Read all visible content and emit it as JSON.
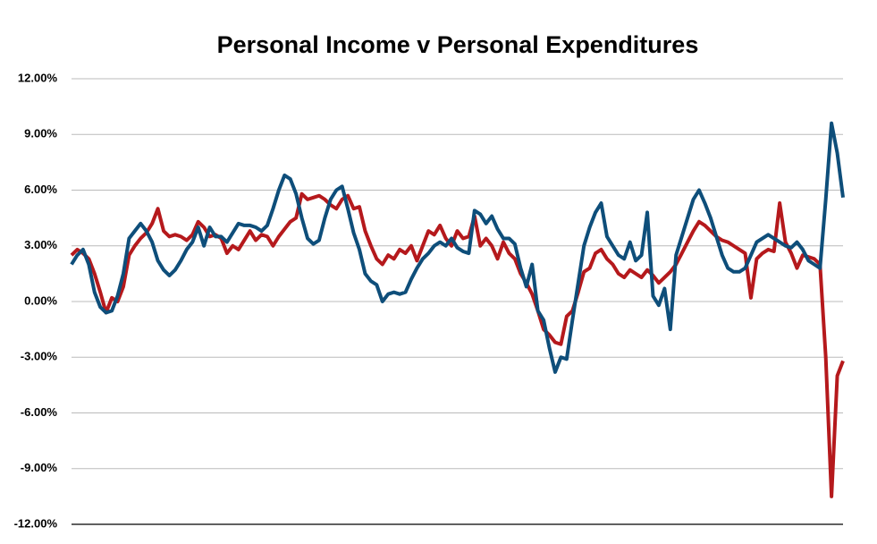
{
  "chart_data": {
    "type": "line",
    "title": "Personal Income v Personal Expenditures",
    "ylim": [
      -12,
      12
    ],
    "yticks": [
      {
        "value": 12,
        "label": "12.00%"
      },
      {
        "value": 9,
        "label": "9.00%"
      },
      {
        "value": 6,
        "label": "6.00%"
      },
      {
        "value": 3,
        "label": "3.00%"
      },
      {
        "value": 0,
        "label": "0.00%"
      },
      {
        "value": -3,
        "label": "-3.00%"
      },
      {
        "value": -6,
        "label": "-6.00%"
      },
      {
        "value": -9,
        "label": "-9.00%"
      },
      {
        "value": -12,
        "label": "-12.00%"
      }
    ],
    "grid": true,
    "series": [
      {
        "color": "#b5191c",
        "values": [
          2.5,
          2.8,
          2.6,
          2.3,
          1.5,
          0.5,
          -0.6,
          0.2,
          0.0,
          0.8,
          2.5,
          3.0,
          3.4,
          3.7,
          4.2,
          5.0,
          3.8,
          3.5,
          3.6,
          3.5,
          3.3,
          3.6,
          4.3,
          4.0,
          3.5,
          3.6,
          3.4,
          2.6,
          3.0,
          2.8,
          3.3,
          3.8,
          3.3,
          3.6,
          3.5,
          3.0,
          3.5,
          3.9,
          4.3,
          4.5,
          5.8,
          5.5,
          5.6,
          5.7,
          5.5,
          5.2,
          5.0,
          5.5,
          5.7,
          5.0,
          5.1,
          3.8,
          3.0,
          2.3,
          2.0,
          2.5,
          2.3,
          2.8,
          2.6,
          3.0,
          2.2,
          3.0,
          3.8,
          3.6,
          4.1,
          3.4,
          3.0,
          3.8,
          3.4,
          3.5,
          4.6,
          3.0,
          3.4,
          3.0,
          2.3,
          3.2,
          2.6,
          2.3,
          1.5,
          1.0,
          0.4,
          -0.5,
          -1.5,
          -1.8,
          -2.2,
          -2.3,
          -0.8,
          -0.5,
          0.5,
          1.6,
          1.8,
          2.6,
          2.8,
          2.3,
          2.0,
          1.5,
          1.3,
          1.7,
          1.5,
          1.3,
          1.7,
          1.4,
          1.0,
          1.3,
          1.6,
          2.0,
          2.6,
          3.2,
          3.8,
          4.3,
          4.1,
          3.8,
          3.5,
          3.3,
          3.2,
          3.0,
          2.8,
          2.6,
          0.2,
          2.3,
          2.6,
          2.8,
          2.7,
          5.3,
          3.2,
          2.6,
          1.8,
          2.5,
          2.4,
          2.3,
          2.0,
          -3.0,
          -10.5,
          -4.0,
          -3.2
        ]
      },
      {
        "color": "#0e4e7a",
        "values": [
          2.0,
          2.5,
          2.8,
          2.0,
          0.5,
          -0.3,
          -0.6,
          -0.5,
          0.3,
          1.5,
          3.4,
          3.8,
          4.2,
          3.8,
          3.2,
          2.2,
          1.7,
          1.4,
          1.7,
          2.2,
          2.8,
          3.2,
          4.0,
          3.0,
          4.0,
          3.5,
          3.5,
          3.2,
          3.7,
          4.2,
          4.1,
          4.1,
          4.0,
          3.8,
          4.1,
          5.0,
          6.0,
          6.8,
          6.6,
          5.8,
          4.5,
          3.4,
          3.1,
          3.3,
          4.5,
          5.5,
          6.0,
          6.2,
          5.0,
          3.7,
          2.8,
          1.5,
          1.1,
          0.9,
          0.0,
          0.4,
          0.5,
          0.4,
          0.5,
          1.2,
          1.8,
          2.3,
          2.6,
          3.0,
          3.2,
          3.0,
          3.4,
          2.9,
          2.7,
          2.6,
          4.9,
          4.7,
          4.2,
          4.6,
          3.9,
          3.4,
          3.4,
          3.1,
          1.8,
          0.8,
          2.0,
          -0.5,
          -1.0,
          -2.5,
          -3.8,
          -3.0,
          -3.1,
          -1.0,
          1.0,
          3.0,
          4.0,
          4.8,
          5.3,
          3.5,
          3.0,
          2.5,
          2.3,
          3.2,
          2.2,
          2.5,
          4.8,
          0.3,
          -0.2,
          0.7,
          -1.5,
          2.5,
          3.5,
          4.5,
          5.5,
          6.0,
          5.3,
          4.5,
          3.5,
          2.5,
          1.8,
          1.6,
          1.6,
          1.8,
          2.5,
          3.2,
          3.4,
          3.6,
          3.4,
          3.2,
          3.0,
          2.9,
          3.2,
          2.8,
          2.2,
          2.0,
          1.8,
          5.5,
          9.6,
          8.0,
          5.6
        ]
      }
    ]
  }
}
